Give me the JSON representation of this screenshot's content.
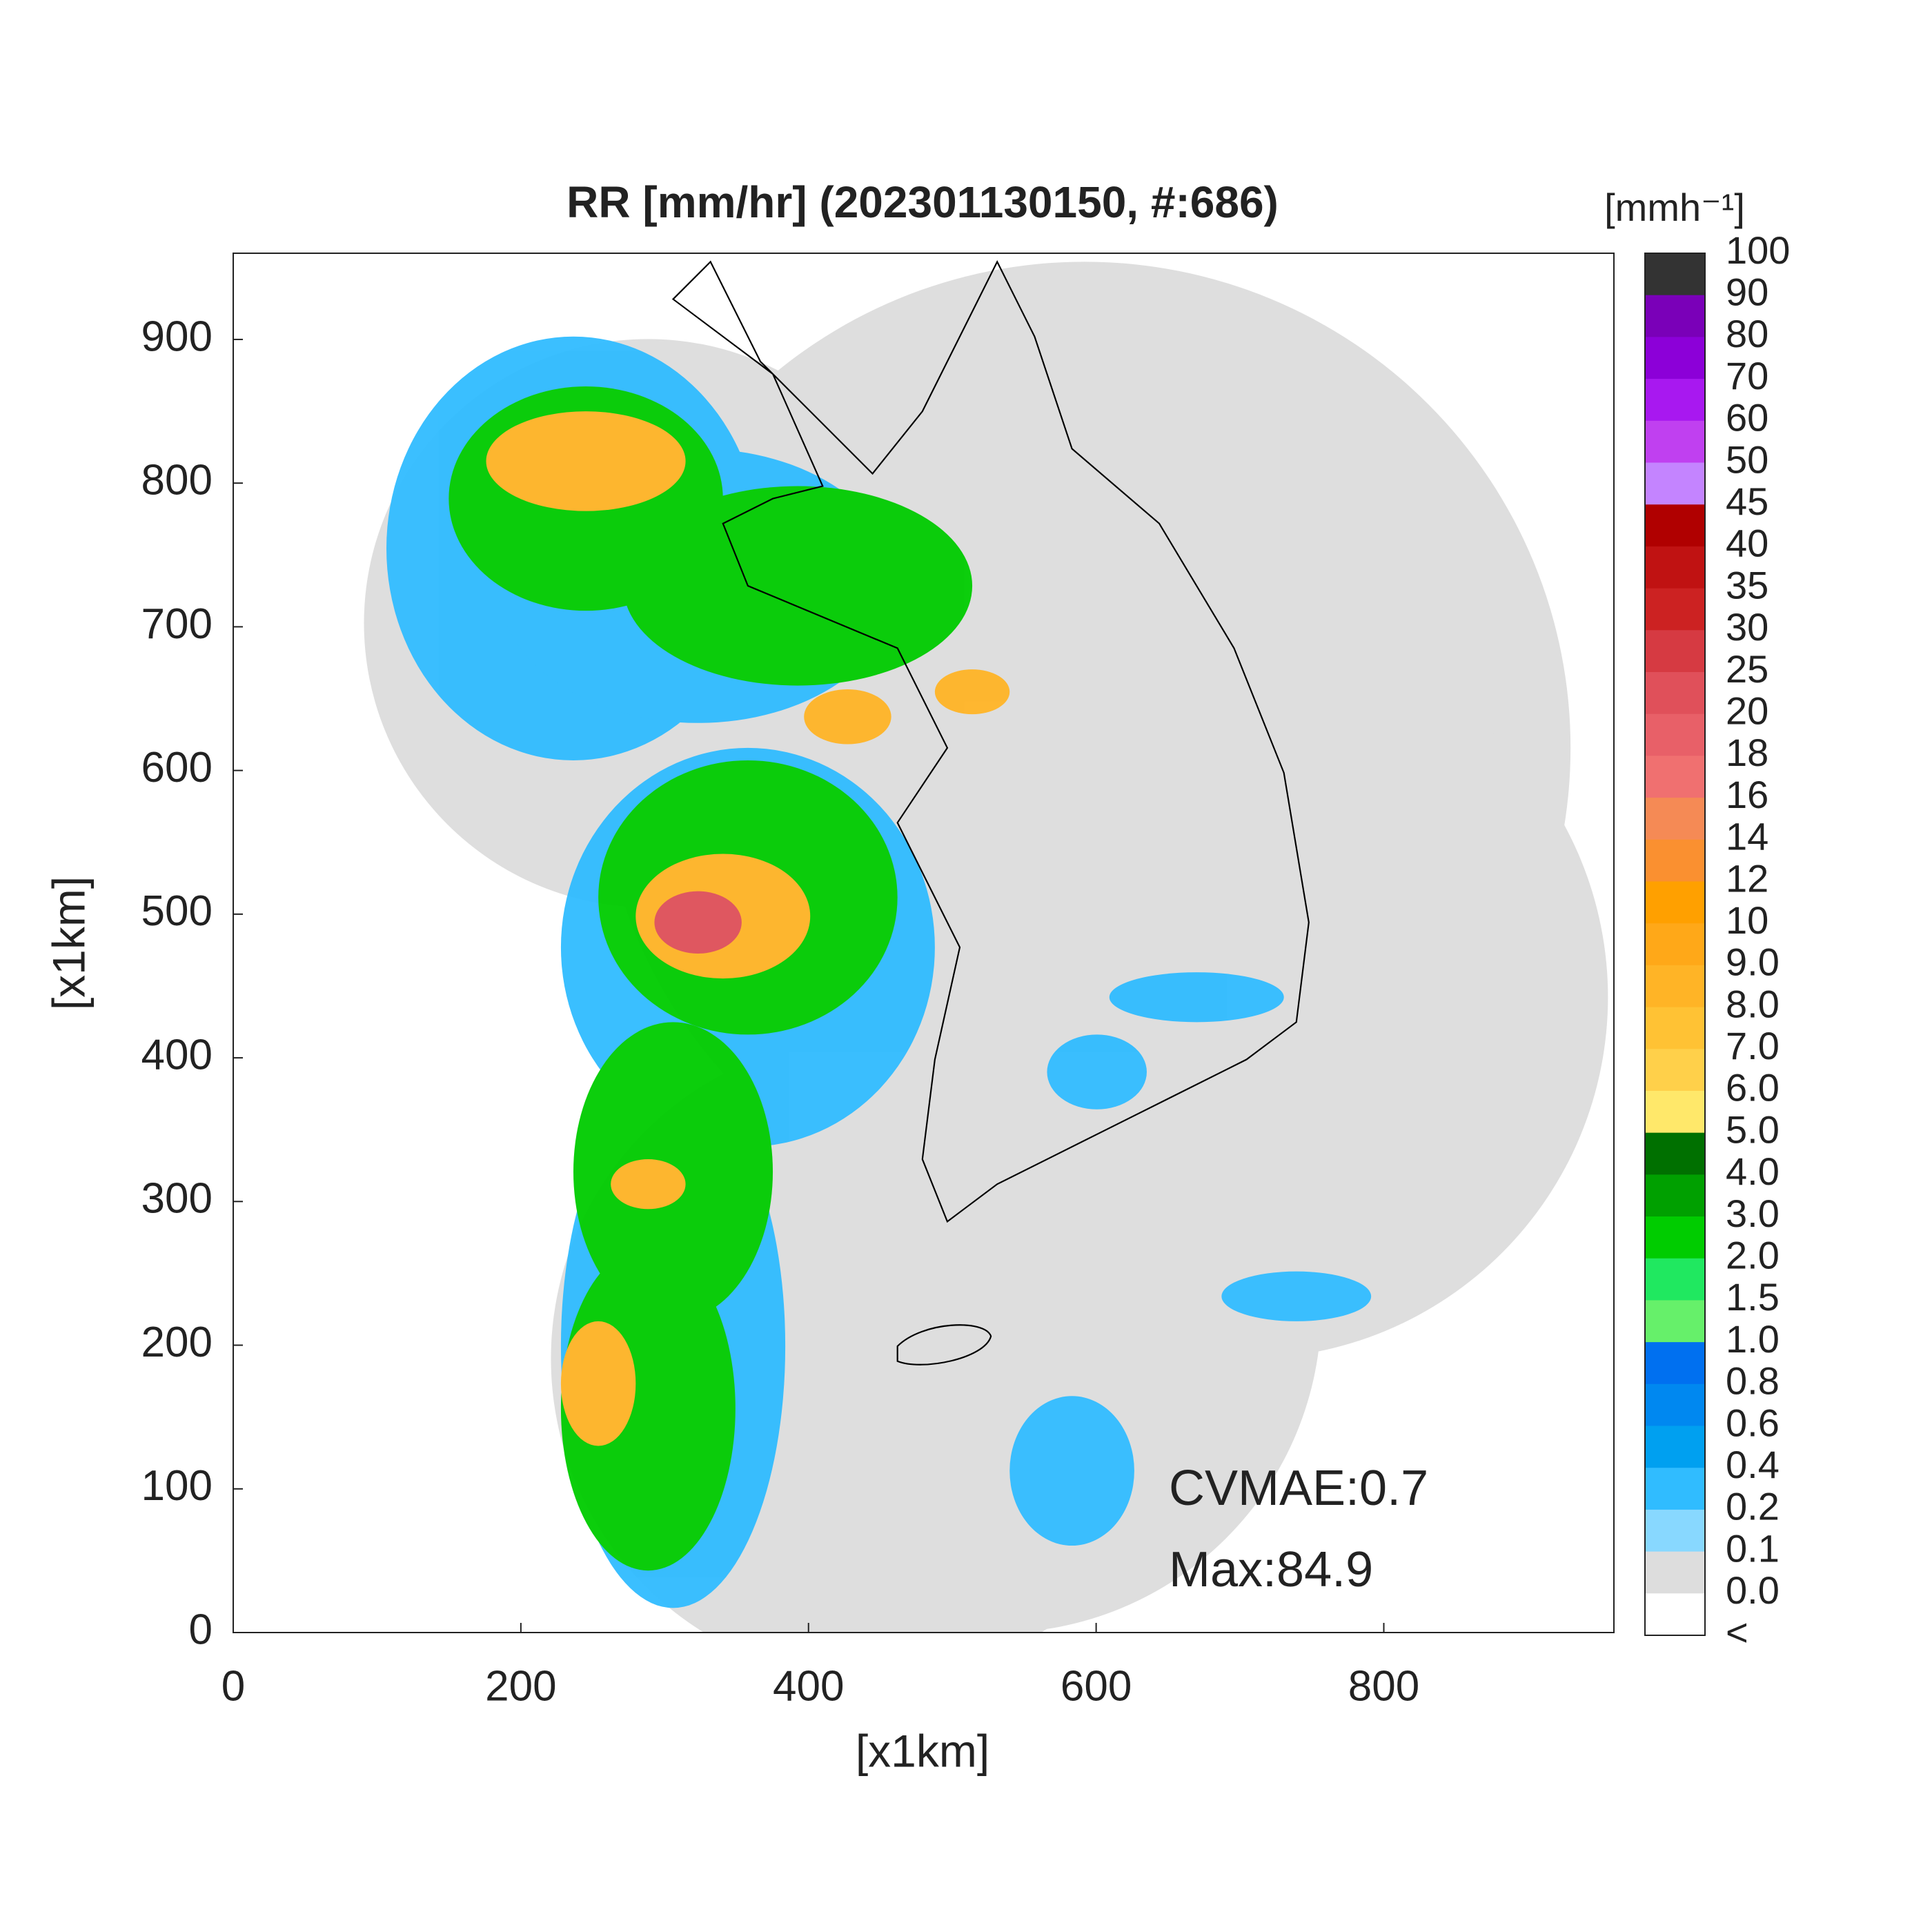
{
  "map": {
    "title": "RR [mm/hr] (202301130150, #:686)",
    "x_label": "[x1km]",
    "y_label": "[x1km]",
    "xlim": [
      0,
      960
    ],
    "ylim": [
      0,
      960
    ],
    "xticks": [
      0,
      200,
      400,
      600,
      800
    ],
    "yticks": [
      0,
      100,
      200,
      300,
      400,
      500,
      600,
      700,
      800,
      900
    ],
    "annotations": [
      "CVMAE:0.7",
      "Max:84.9"
    ],
    "colorbar": {
      "label": "[mmh⁻¹]",
      "ticks": [
        100,
        90,
        80,
        70,
        60,
        50,
        45,
        40,
        35,
        30,
        25,
        20,
        18,
        16,
        14,
        12,
        10,
        {
          "value": 9,
          "label": "9.0"
        },
        {
          "value": 8,
          "label": "8.0"
        },
        {
          "value": 7,
          "label": "7.0"
        },
        {
          "value": 6,
          "label": "6.0"
        },
        {
          "value": 5,
          "label": "5.0"
        },
        {
          "value": 4,
          "label": "4.0"
        },
        {
          "value": 3,
          "label": "3.0"
        },
        {
          "value": 2,
          "label": "2.0"
        },
        1.5,
        {
          "value": 1,
          "label": "1.0"
        },
        0.8,
        0.6,
        0.4,
        0.2,
        0.1,
        {
          "value": 0,
          "label": "0.0"
        },
        "<"
      ],
      "colors": [
        "#333333",
        "#7a00b8",
        "#8c00d8",
        "#a818f0",
        "#c040f0",
        "#c484ff",
        "#b00000",
        "#c01212",
        "#cc2222",
        "#d63a42",
        "#e0505a",
        "#e86068",
        "#f07070",
        "#f58a55",
        "#fa9030",
        "#ffa000",
        "#ffa818",
        "#ffb426",
        "#ffc234",
        "#ffd04a",
        "#ffe86a",
        "#007000",
        "#00a000",
        "#00cc00",
        "#20e860",
        "#66f06a",
        "#0070f0",
        "#0088f0",
        "#00a0f0",
        "#30bcff",
        "#88d8ff",
        "#dddddd",
        "#ffffff"
      ]
    }
  }
}
